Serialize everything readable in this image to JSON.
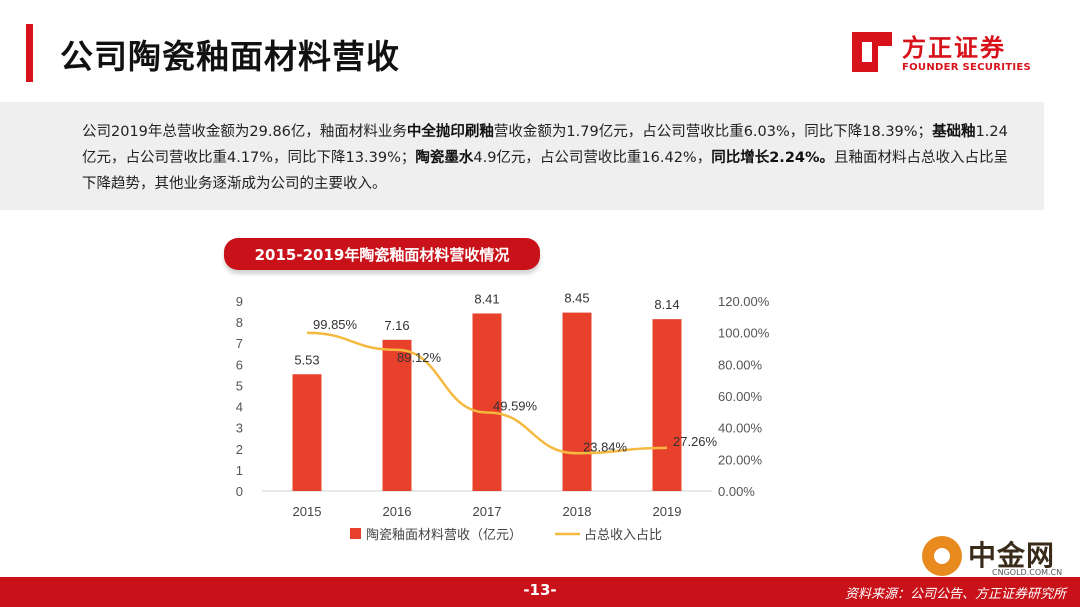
{
  "header": {
    "title": "公司陶瓷釉面材料营收",
    "logo_cn": "方正证券",
    "logo_en": "FOUNDER SECURITIES"
  },
  "summary": {
    "segments": [
      {
        "text": "公司2019年总营收金额为29.86亿，釉面材料业务",
        "bold": false
      },
      {
        "text": "中全抛印刷釉",
        "bold": true
      },
      {
        "text": "营收金额为1.79亿元，占公司营收比重6.03%，同比下降18.39%；",
        "bold": false
      },
      {
        "text": "基础釉",
        "bold": true
      },
      {
        "text": "1.24亿元，占公司营收比重4.17%，同比下降13.39%；",
        "bold": false
      },
      {
        "text": "陶瓷墨水",
        "bold": true
      },
      {
        "text": "4.9亿元，占公司营收比重16.42%，",
        "bold": false
      },
      {
        "text": "同比增长2.24%。",
        "bold": true
      },
      {
        "text": "且釉面材料占总收入占比呈下降趋势，其他业务逐渐成为公司的主要收入。",
        "bold": false
      }
    ]
  },
  "chart_data": {
    "type": "bar",
    "title": "2015-2019年陶瓷釉面材料营收情况",
    "categories": [
      "2015",
      "2016",
      "2017",
      "2018",
      "2019"
    ],
    "series": [
      {
        "name": "陶瓷釉面材料营收（亿元）",
        "type": "bar",
        "axis": "left",
        "values": [
          5.53,
          7.16,
          8.41,
          8.45,
          8.14
        ],
        "labels": [
          "5.53",
          "7.16",
          "8.41",
          "8.45",
          "8.14"
        ],
        "color": "#e8412b"
      },
      {
        "name": "占总收入占比",
        "type": "line",
        "axis": "right",
        "values": [
          99.85,
          89.12,
          49.59,
          23.84,
          27.26
        ],
        "labels": [
          "99.85%",
          "89.12%",
          "49.59%",
          "23.84%",
          "27.26%"
        ],
        "color": "#f5b93f"
      }
    ],
    "y_left": {
      "min": 0,
      "max": 9,
      "ticks": [
        "0",
        "1",
        "2",
        "3",
        "4",
        "5",
        "6",
        "7",
        "8",
        "9"
      ]
    },
    "y_right": {
      "min": 0,
      "max": 120,
      "ticks": [
        "0.00%",
        "20.00%",
        "40.00%",
        "60.00%",
        "80.00%",
        "100.00%",
        "120.00%"
      ]
    },
    "grid": false,
    "legend": "bottom"
  },
  "footer": {
    "page": "-13-",
    "source": "资料来源：公司公告、方正证券研究所",
    "watermark": "中金网",
    "watermark_sub": "CNGOLD.COM.CN"
  },
  "colors": {
    "accent": "#c81119",
    "bar": "#e8412b",
    "line": "#f5b93f"
  }
}
